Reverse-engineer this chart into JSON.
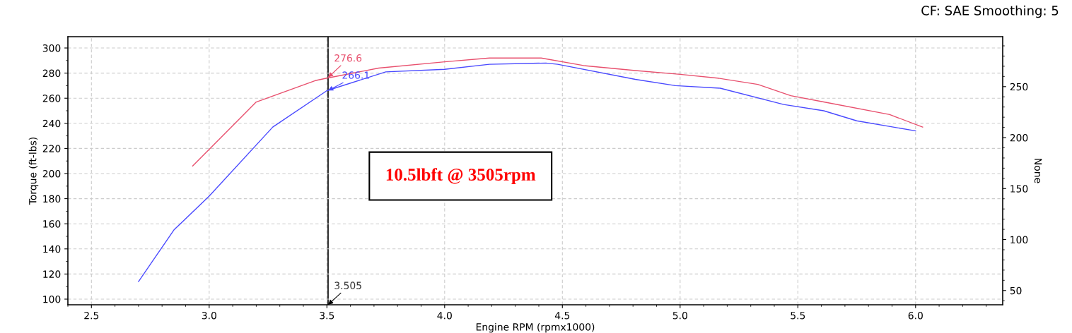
{
  "chart_data": {
    "type": "line",
    "xlabel": "Engine RPM (rpmx1000)",
    "ylabel": "Torque (ft-lbs)",
    "y2label": "None",
    "xlim": [
      2.4,
      6.37
    ],
    "xticks": [
      {
        "value": 2.5,
        "label": "2.5"
      },
      {
        "value": 3.0,
        "label": "3.0"
      },
      {
        "value": 3.5,
        "label": "3.5"
      },
      {
        "value": 4.0,
        "label": "4.0"
      },
      {
        "value": 4.5,
        "label": "4.5"
      },
      {
        "value": 5.0,
        "label": "5.0"
      },
      {
        "value": 5.5,
        "label": "5.5"
      },
      {
        "value": 6.0,
        "label": "6.0"
      }
    ],
    "ylim": [
      95.5,
      309
    ],
    "yticks": [
      100,
      120,
      140,
      160,
      180,
      200,
      220,
      240,
      260,
      280,
      300
    ],
    "y2lim": [
      36,
      299
    ],
    "y2ticks": [
      50,
      100,
      150,
      200,
      250
    ],
    "grid": true,
    "line_style": "solid",
    "series": [
      {
        "color": "#e8506e",
        "x": [
          2.93,
          3.2,
          3.45,
          3.5,
          3.72,
          4.0,
          4.19,
          4.41,
          4.59,
          4.81,
          5.0,
          5.16,
          5.33,
          5.47,
          5.61,
          5.89,
          6.03
        ],
        "values": [
          206,
          257,
          274,
          276,
          284,
          289,
          292,
          292,
          286,
          282,
          279,
          276,
          271,
          262,
          257,
          247,
          237
        ]
      },
      {
        "color": "#4a4aff",
        "x": [
          2.7,
          2.85,
          3.0,
          3.27,
          3.5,
          3.75,
          4.0,
          4.19,
          4.43,
          4.48,
          4.81,
          4.98,
          5.17,
          5.44,
          5.61,
          5.75,
          6.0
        ],
        "values": [
          114,
          155,
          182,
          237,
          266,
          281,
          283,
          287,
          288,
          287,
          275,
          270,
          268,
          255,
          250,
          242,
          234
        ]
      }
    ],
    "ref_lines": [
      {
        "axis": "x",
        "value": 3.505,
        "label": "3.505",
        "color": "#000000"
      }
    ],
    "annotations": [
      "CF: SAE Smoothing: 5",
      "10.5lbft @ 3505rpm",
      {
        "text": "276.6",
        "x": 3.505,
        "y": 276.6
      },
      {
        "text": "266.1",
        "x": 3.505,
        "y": 266.1
      }
    ]
  }
}
